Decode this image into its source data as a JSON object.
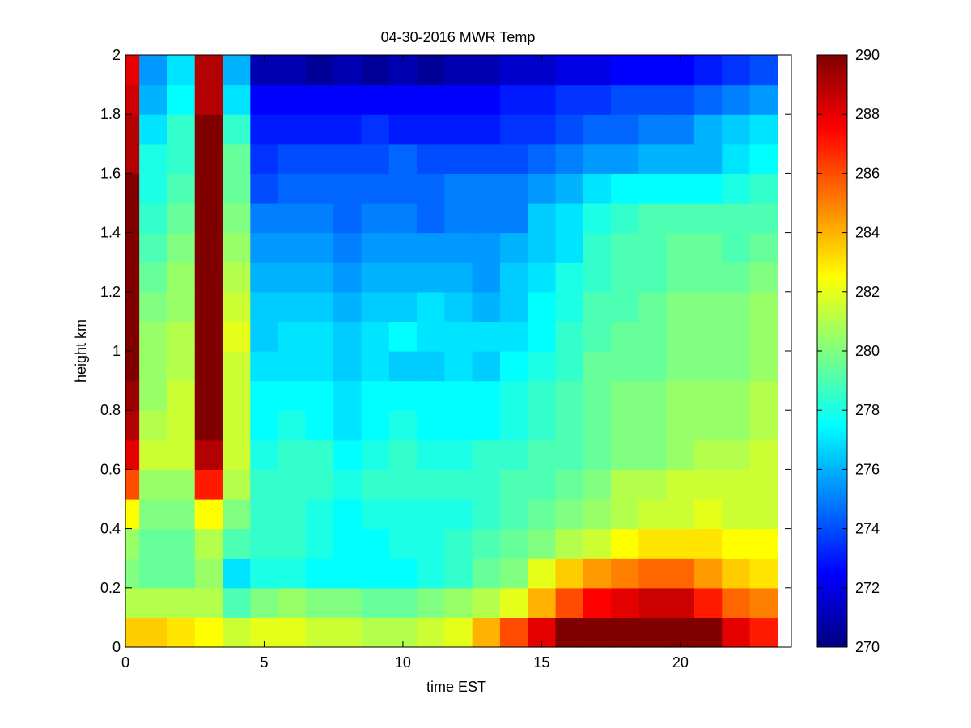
{
  "chart_data": {
    "type": "heatmap",
    "title": "04-30-2016 MWR Temp",
    "xlabel": "time EST",
    "ylabel": "height km",
    "xlim": [
      0,
      24
    ],
    "ylim": [
      0,
      2
    ],
    "x_ticks": [
      0,
      5,
      10,
      15,
      20
    ],
    "y_ticks": [
      0,
      0.2,
      0.4,
      0.6,
      0.8,
      1,
      1.2,
      1.4,
      1.6,
      1.8,
      2
    ],
    "x_tick_labels": [
      "0",
      "5",
      "10",
      "15",
      "20"
    ],
    "y_tick_labels": [
      "0",
      "0.2",
      "0.4",
      "0.6",
      "0.8",
      "1",
      "1.2",
      "1.4",
      "1.6",
      "1.8",
      "2"
    ],
    "colormap": "jet",
    "clim": [
      270,
      290
    ],
    "colorbar_ticks": [
      270,
      272,
      274,
      276,
      278,
      280,
      282,
      284,
      286,
      288,
      290
    ],
    "colorbar_tick_labels": [
      "270",
      "272",
      "274",
      "276",
      "278",
      "280",
      "282",
      "284",
      "286",
      "288",
      "290"
    ],
    "time_hours": [
      0,
      1,
      2,
      3,
      4,
      5,
      6,
      7,
      8,
      9,
      10,
      11,
      12,
      13,
      14,
      15,
      16,
      17,
      18,
      19,
      20,
      21,
      22,
      23
    ],
    "heights_km": [
      0,
      0.1,
      0.2,
      0.3,
      0.4,
      0.5,
      0.6,
      0.7,
      0.8,
      0.9,
      1.0,
      1.1,
      1.2,
      1.3,
      1.4,
      1.5,
      1.6,
      1.7,
      1.8,
      1.9,
      2.0
    ],
    "values": [
      [
        283.5,
        283.5,
        283,
        282.5,
        281.5,
        282,
        282,
        281.5,
        281.5,
        281,
        281,
        281.5,
        282,
        284,
        286,
        288,
        290,
        290,
        290,
        290,
        290,
        290,
        288,
        287
      ],
      [
        281,
        281,
        281,
        281,
        279,
        280,
        280.5,
        280,
        280,
        279.5,
        279.5,
        280,
        280.5,
        281,
        282,
        284,
        286,
        287.5,
        288,
        288.5,
        288.5,
        287,
        285.5,
        285
      ],
      [
        280,
        279.5,
        279.5,
        280.5,
        277,
        278,
        278,
        277.5,
        277.5,
        277.5,
        277.5,
        278,
        278.5,
        279.5,
        280,
        282,
        283.5,
        284.5,
        285,
        285.5,
        285.5,
        284.5,
        283.5,
        283
      ],
      [
        280.5,
        279.5,
        279.5,
        281,
        279,
        278.5,
        278.5,
        278,
        277.5,
        277.5,
        278,
        278,
        278.5,
        279,
        279.5,
        280,
        281,
        281.5,
        282.5,
        283,
        283,
        283,
        282.5,
        282.5
      ],
      [
        282.5,
        280,
        280,
        282.5,
        280,
        278.5,
        278.5,
        278,
        277.5,
        278,
        278,
        278,
        278,
        278.5,
        279,
        279.5,
        280,
        280.5,
        281,
        281.5,
        281.5,
        282,
        281.5,
        281.5
      ],
      [
        286,
        280.5,
        280.5,
        287,
        281,
        278.5,
        278.5,
        278.5,
        278,
        278.5,
        278.5,
        278.5,
        278.5,
        278.5,
        279,
        279,
        279.5,
        280,
        281,
        281,
        281.5,
        281.5,
        281.5,
        281.5
      ],
      [
        288,
        281.5,
        281.5,
        289,
        281.5,
        278,
        278.5,
        278.5,
        277.5,
        278,
        278.5,
        278,
        278,
        278.5,
        278.5,
        279,
        279,
        279.5,
        280,
        280,
        280.5,
        281,
        281,
        281.5
      ],
      [
        289,
        281,
        281.5,
        290,
        281.5,
        277.5,
        278,
        277.5,
        277,
        277.5,
        278,
        277.5,
        277.5,
        277.5,
        278,
        278.5,
        279,
        279.5,
        280,
        280,
        280.5,
        280.5,
        280.5,
        281
      ],
      [
        289.5,
        280.5,
        281.5,
        290,
        281.5,
        277.5,
        277.5,
        277.5,
        277,
        277.5,
        277.5,
        277.5,
        277.5,
        277.5,
        278,
        278.5,
        279,
        279.5,
        280,
        280,
        280.5,
        280.5,
        280.5,
        281
      ],
      [
        290,
        280.5,
        281,
        290,
        281.5,
        277,
        277,
        277,
        276.5,
        277,
        276.5,
        276.5,
        277,
        276.5,
        277.5,
        278,
        278.5,
        279.5,
        279.5,
        279.5,
        280,
        280,
        280,
        280.5
      ],
      [
        290,
        280.5,
        281,
        290,
        282,
        276.5,
        277,
        277,
        276.5,
        277,
        277.5,
        277,
        277,
        277,
        277,
        277.5,
        278.5,
        279,
        279.5,
        279.5,
        280,
        280,
        280,
        280.5
      ],
      [
        290,
        280,
        280.5,
        290,
        281.5,
        276.5,
        276.5,
        276.5,
        276,
        276.5,
        276.5,
        277,
        276.5,
        276,
        276.5,
        277.5,
        278,
        279,
        279,
        279.5,
        280,
        280,
        280,
        280.5
      ],
      [
        290,
        279.5,
        280.5,
        290,
        281,
        276,
        276,
        276,
        275.5,
        276,
        276,
        276,
        276,
        275.5,
        276.5,
        277,
        278,
        278.5,
        279,
        279,
        279.5,
        279.5,
        279.5,
        280
      ],
      [
        290,
        279,
        280,
        290,
        280.5,
        275.5,
        275.5,
        275.5,
        275,
        275.5,
        275.5,
        275.5,
        275.5,
        275.5,
        276,
        276.5,
        277,
        278.5,
        279,
        279,
        279.5,
        279.5,
        279,
        279.5
      ],
      [
        290,
        278.5,
        279.5,
        290,
        280,
        275,
        275,
        275,
        274.5,
        275,
        275,
        274.5,
        275,
        275,
        275,
        276.5,
        277,
        278,
        278.5,
        279,
        279,
        279,
        279,
        279
      ],
      [
        290,
        278,
        279,
        290,
        279.5,
        274,
        274.5,
        274.5,
        274.5,
        274.5,
        274.5,
        274.5,
        275,
        275,
        275,
        275.5,
        276,
        277,
        277.5,
        277.5,
        277.5,
        277.5,
        278,
        278.5
      ],
      [
        289,
        278,
        278.5,
        290,
        279.5,
        273.5,
        274,
        274,
        274,
        274,
        274.5,
        274,
        274,
        274,
        274,
        274.5,
        275,
        275.5,
        275.5,
        276,
        276,
        276,
        277,
        277.5
      ],
      [
        289,
        277,
        278.5,
        290,
        278.5,
        273,
        273,
        273,
        273,
        273.5,
        273,
        273,
        273,
        273,
        273.5,
        273.5,
        274,
        274.5,
        274.5,
        275,
        275,
        276,
        276.5,
        277
      ],
      [
        288.5,
        276,
        277.5,
        289,
        277,
        272.5,
        272.5,
        272.5,
        272.5,
        272.5,
        272.5,
        272.5,
        272.5,
        272.5,
        273,
        273,
        273.5,
        273.5,
        274,
        274,
        274,
        274.5,
        275,
        275.5
      ],
      [
        288,
        275.5,
        277,
        289,
        276,
        271,
        271,
        270.5,
        271,
        270.5,
        271,
        270.5,
        271,
        271,
        271.5,
        271.5,
        272,
        272,
        272.5,
        272.5,
        272.5,
        273,
        273.5,
        274
      ]
    ],
    "values_note_rows": "rows ordered bottom (0 km) to top (1.9-2.0 km); columns are hourly bins",
    "grid": false,
    "colorbar": "right"
  }
}
